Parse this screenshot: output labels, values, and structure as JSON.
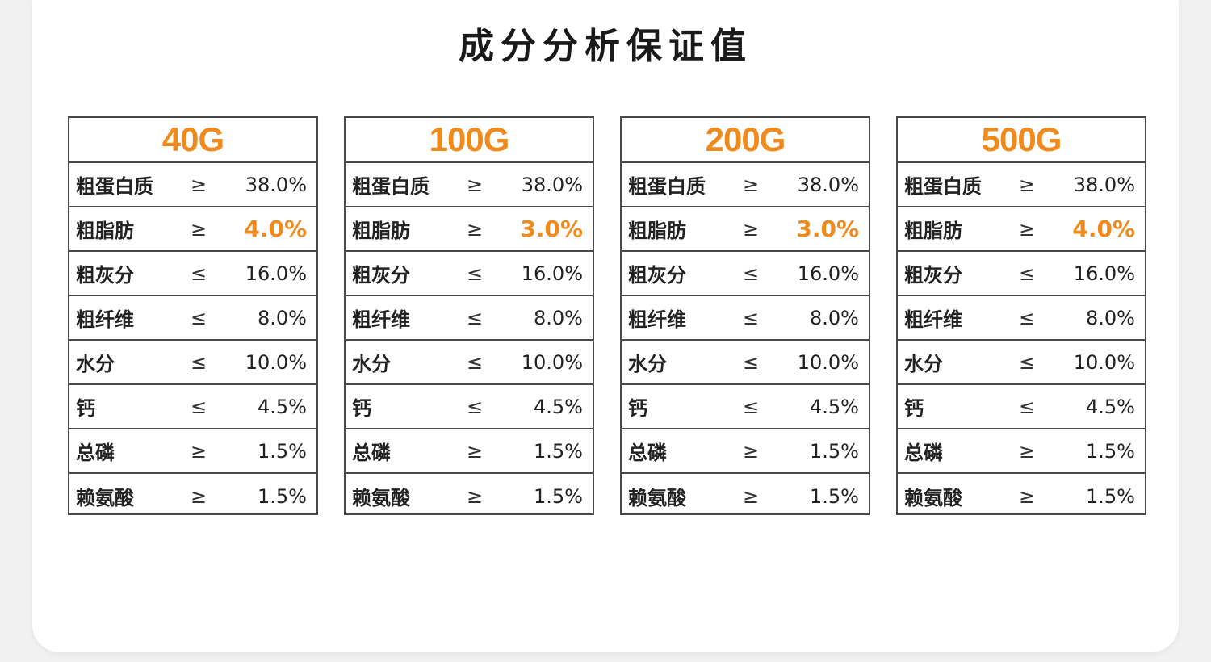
{
  "title": "成分分析保证值",
  "colors": {
    "accent": "#f08a1c",
    "border": "#4a4a4a",
    "text": "#222222"
  },
  "tables": [
    {
      "size": "40G",
      "rows": [
        {
          "name": "粗蛋白质",
          "op": "≥",
          "value": "38.0%",
          "highlight": false
        },
        {
          "name": "粗脂肪",
          "op": "≥",
          "value": "4.0%",
          "highlight": true
        },
        {
          "name": "粗灰分",
          "op": "≤",
          "value": "16.0%",
          "highlight": false
        },
        {
          "name": "粗纤维",
          "op": "≤",
          "value": "8.0%",
          "highlight": false
        },
        {
          "name": "水分",
          "op": "≤",
          "value": "10.0%",
          "highlight": false
        },
        {
          "name": "钙",
          "op": "≤",
          "value": "4.5%",
          "highlight": false
        },
        {
          "name": "总磷",
          "op": "≥",
          "value": "1.5%",
          "highlight": false
        },
        {
          "name": "赖氨酸",
          "op": "≥",
          "value": "1.5%",
          "highlight": false
        }
      ]
    },
    {
      "size": "100G",
      "rows": [
        {
          "name": "粗蛋白质",
          "op": "≥",
          "value": "38.0%",
          "highlight": false
        },
        {
          "name": "粗脂肪",
          "op": "≥",
          "value": "3.0%",
          "highlight": true
        },
        {
          "name": "粗灰分",
          "op": "≤",
          "value": "16.0%",
          "highlight": false
        },
        {
          "name": "粗纤维",
          "op": "≤",
          "value": "8.0%",
          "highlight": false
        },
        {
          "name": "水分",
          "op": "≤",
          "value": "10.0%",
          "highlight": false
        },
        {
          "name": "钙",
          "op": "≤",
          "value": "4.5%",
          "highlight": false
        },
        {
          "name": "总磷",
          "op": "≥",
          "value": "1.5%",
          "highlight": false
        },
        {
          "name": "赖氨酸",
          "op": "≥",
          "value": "1.5%",
          "highlight": false
        }
      ]
    },
    {
      "size": "200G",
      "rows": [
        {
          "name": "粗蛋白质",
          "op": "≥",
          "value": "38.0%",
          "highlight": false
        },
        {
          "name": "粗脂肪",
          "op": "≥",
          "value": "3.0%",
          "highlight": true
        },
        {
          "name": "粗灰分",
          "op": "≤",
          "value": "16.0%",
          "highlight": false
        },
        {
          "name": "粗纤维",
          "op": "≤",
          "value": "8.0%",
          "highlight": false
        },
        {
          "name": "水分",
          "op": "≤",
          "value": "10.0%",
          "highlight": false
        },
        {
          "name": "钙",
          "op": "≤",
          "value": "4.5%",
          "highlight": false
        },
        {
          "name": "总磷",
          "op": "≥",
          "value": "1.5%",
          "highlight": false
        },
        {
          "name": "赖氨酸",
          "op": "≥",
          "value": "1.5%",
          "highlight": false
        }
      ]
    },
    {
      "size": "500G",
      "rows": [
        {
          "name": "粗蛋白质",
          "op": "≥",
          "value": "38.0%",
          "highlight": false
        },
        {
          "name": "粗脂肪",
          "op": "≥",
          "value": "4.0%",
          "highlight": true
        },
        {
          "name": "粗灰分",
          "op": "≤",
          "value": "16.0%",
          "highlight": false
        },
        {
          "name": "粗纤维",
          "op": "≤",
          "value": "8.0%",
          "highlight": false
        },
        {
          "name": "水分",
          "op": "≤",
          "value": "10.0%",
          "highlight": false
        },
        {
          "name": "钙",
          "op": "≤",
          "value": "4.5%",
          "highlight": false
        },
        {
          "name": "总磷",
          "op": "≥",
          "value": "1.5%",
          "highlight": false
        },
        {
          "name": "赖氨酸",
          "op": "≥",
          "value": "1.5%",
          "highlight": false
        }
      ]
    }
  ]
}
